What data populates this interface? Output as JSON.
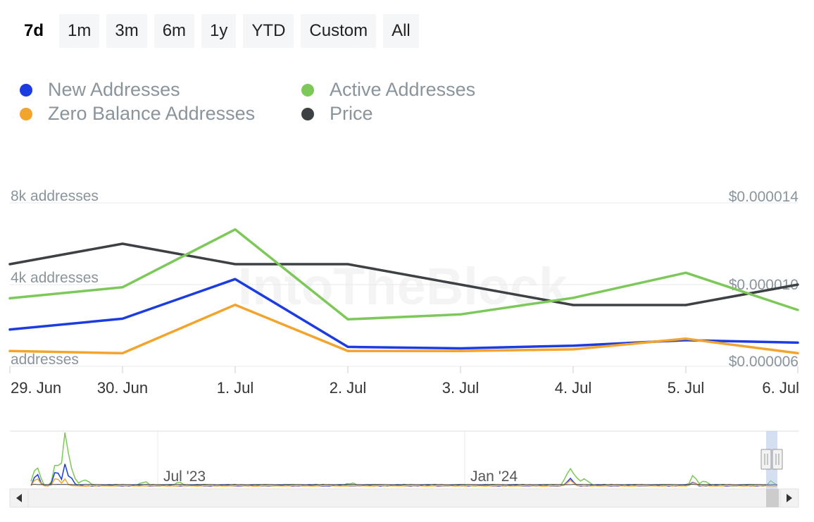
{
  "ranges": {
    "items": [
      "7d",
      "1m",
      "3m",
      "6m",
      "1y",
      "YTD",
      "Custom",
      "All"
    ],
    "selected": "7d"
  },
  "watermark": "IntoTheBlock",
  "colors": {
    "new": "#1a3ce0",
    "active": "#7cc95a",
    "zero": "#f2a42c",
    "price": "#3e4144",
    "axis_text": "#8a949c",
    "grid": "#e6e9ec"
  },
  "chart_data": {
    "type": "line",
    "x": [
      "29. Jun",
      "30. Jun",
      "1. Jul",
      "2. Jul",
      "3. Jul",
      "4. Jul",
      "5. Jul",
      "6. Jul"
    ],
    "series": [
      {
        "name": "New Addresses",
        "axis": "left",
        "color": "#1a3ce0",
        "values": [
          1800,
          2330,
          4270,
          950,
          880,
          1010,
          1280,
          1160
        ]
      },
      {
        "name": "Active Addresses",
        "axis": "left",
        "color": "#7cc95a",
        "values": [
          3330,
          3870,
          6700,
          2300,
          2540,
          3350,
          4580,
          2760
        ]
      },
      {
        "name": "Zero Balance Addresses",
        "axis": "left",
        "color": "#f2a42c",
        "values": [
          750,
          640,
          3010,
          750,
          750,
          830,
          1350,
          640
        ]
      },
      {
        "name": "Price",
        "axis": "right",
        "color": "#3e4144",
        "values": [
          1.1e-05,
          1.2e-05,
          1.1e-05,
          1.1e-05,
          1e-05,
          9e-06,
          9e-06,
          1e-05
        ]
      }
    ],
    "y_left": {
      "ticks": [
        "8k addresses",
        "4k addresses",
        "addresses"
      ],
      "tick_values": [
        8000,
        4000,
        0
      ],
      "range": [
        0,
        8000
      ]
    },
    "y_right": {
      "ticks": [
        "$0.000014",
        "$0.000010",
        "$0.000006"
      ],
      "tick_values": [
        1.4e-05,
        1e-05,
        6e-06
      ],
      "range": [
        6e-06,
        1.4e-05
      ]
    },
    "grid": true,
    "legend_placement": "top-left",
    "navigator": {
      "labels": [
        "Jul '23",
        "Jan '24"
      ]
    }
  }
}
